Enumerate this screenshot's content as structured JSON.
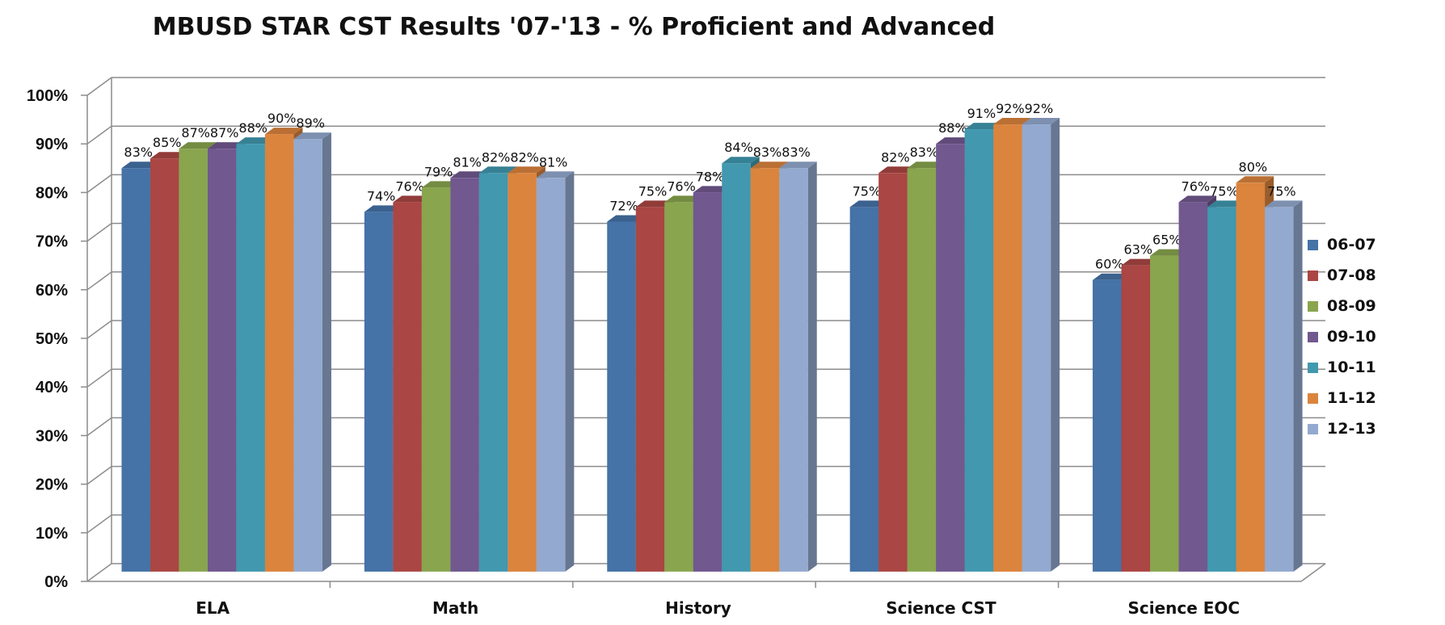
{
  "chart_data": {
    "type": "bar",
    "title": "MBUSD STAR CST Results '07-'13 - % Proficient and Advanced",
    "categories": [
      "ELA",
      "Math",
      "History",
      "Science CST",
      "Science EOC"
    ],
    "series": [
      {
        "name": "06-07",
        "color": "#4572A7",
        "values": [
          83,
          74,
          72,
          75,
          60
        ]
      },
      {
        "name": "07-08",
        "color": "#AA4643",
        "values": [
          85,
          76,
          75,
          82,
          63
        ]
      },
      {
        "name": "08-09",
        "color": "#89A54E",
        "values": [
          87,
          79,
          76,
          83,
          65
        ]
      },
      {
        "name": "09-10",
        "color": "#71588F",
        "values": [
          87,
          81,
          78,
          88,
          76
        ]
      },
      {
        "name": "10-11",
        "color": "#4198AF",
        "values": [
          88,
          82,
          84,
          91,
          75
        ]
      },
      {
        "name": "11-12",
        "color": "#DB843D",
        "values": [
          90,
          82,
          83,
          92,
          80
        ]
      },
      {
        "name": "12-13",
        "color": "#93A9CF",
        "values": [
          89,
          81,
          83,
          92,
          75
        ]
      }
    ],
    "data_labels": [
      [
        "83%",
        "74%",
        "72%",
        "75%",
        "60%"
      ],
      [
        "85%",
        "76%",
        "75%",
        "82%",
        "63%"
      ],
      [
        "87%",
        "79%",
        "76%",
        "83%",
        "65%"
      ],
      [
        "87%",
        "81%",
        "78%",
        "88%",
        "76%"
      ],
      [
        "88%",
        "82%",
        "84%",
        "91%",
        "75%"
      ],
      [
        "90%",
        "82%",
        "83%",
        "92%",
        "80%"
      ],
      [
        "89%",
        "81%",
        "83%",
        "92%",
        "75%"
      ]
    ],
    "y_ticks": [
      "0%",
      "10%",
      "20%",
      "30%",
      "40%",
      "50%",
      "60%",
      "70%",
      "80%",
      "90%",
      "100%"
    ],
    "ylim": [
      0,
      100
    ],
    "grid": true,
    "legend_position": "right",
    "style": "3d-clustered-column"
  }
}
